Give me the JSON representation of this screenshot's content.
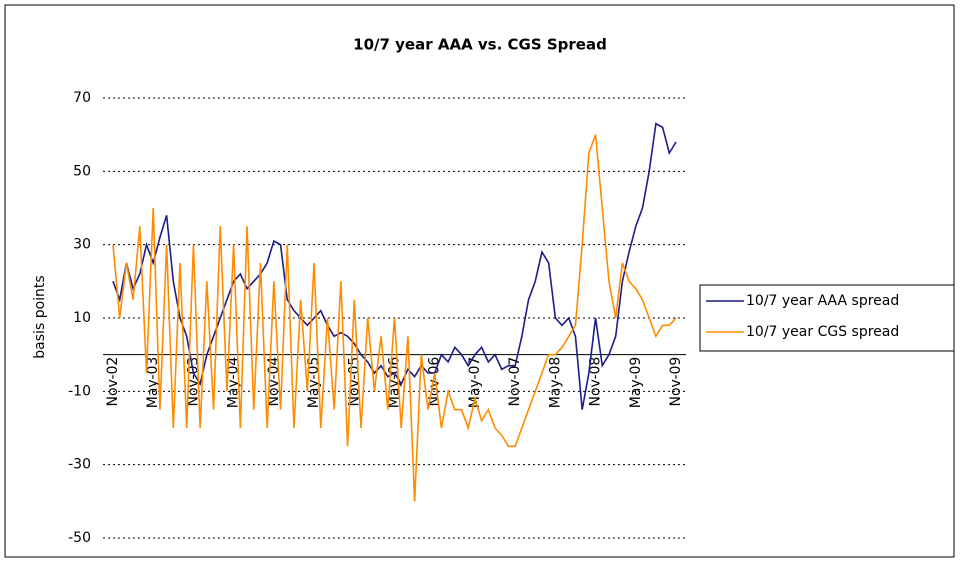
{
  "chart_data": {
    "type": "line",
    "title": "10/7 year AAA vs. CGS Spread",
    "y_label": "basis points",
    "categories": [
      "Nov-02",
      null,
      null,
      null,
      null,
      null,
      "May-03",
      null,
      null,
      null,
      null,
      null,
      "Nov-03",
      null,
      null,
      null,
      null,
      null,
      "May-04",
      null,
      null,
      null,
      null,
      null,
      "Nov-04",
      null,
      null,
      null,
      null,
      null,
      "May-05",
      null,
      null,
      null,
      null,
      null,
      "Nov-05",
      null,
      null,
      null,
      null,
      null,
      "May-06",
      null,
      null,
      null,
      null,
      null,
      "Nov-06",
      null,
      null,
      null,
      null,
      null,
      "May-07",
      null,
      null,
      null,
      null,
      null,
      "Nov-07",
      null,
      null,
      null,
      null,
      null,
      "May-08",
      null,
      null,
      null,
      null,
      null,
      "Nov-08",
      null,
      null,
      null,
      null,
      null,
      "May-09",
      null,
      null,
      null,
      null,
      null,
      "Nov-09"
    ],
    "series": [
      {
        "name": "10/7 year AAA spread",
        "color": "#1c1c8a",
        "values": [
          20,
          15,
          25,
          18,
          22,
          30,
          25,
          32,
          38,
          20,
          10,
          5,
          -5,
          -8,
          0,
          5,
          10,
          15,
          20,
          22,
          18,
          20,
          22,
          25,
          31,
          30,
          15,
          12,
          10,
          8,
          10,
          12,
          8,
          5,
          6,
          5,
          3,
          0,
          -2,
          -5,
          -3,
          -6,
          -5,
          -8,
          -4,
          -6,
          -3,
          -5,
          -5,
          0,
          -2,
          2,
          0,
          -3,
          0,
          2,
          -2,
          0,
          -4,
          -3,
          -3,
          5,
          15,
          20,
          28,
          25,
          10,
          8,
          10,
          5,
          -15,
          -5,
          10,
          -3,
          0,
          5,
          20,
          28,
          35,
          40,
          50,
          63,
          62,
          55,
          58
        ]
      },
      {
        "name": "10/7 year CGS spread",
        "color": "#ff8c00",
        "values": [
          30,
          10,
          25,
          15,
          35,
          -5,
          40,
          -15,
          30,
          -20,
          25,
          -20,
          30,
          -20,
          20,
          -15,
          35,
          -10,
          30,
          -20,
          35,
          -15,
          25,
          -20,
          20,
          -15,
          30,
          -20,
          15,
          -10,
          25,
          -20,
          10,
          -15,
          20,
          -25,
          15,
          -20,
          10,
          -10,
          5,
          -15,
          10,
          -20,
          5,
          -40,
          0,
          -15,
          -5,
          -20,
          -10,
          -15,
          -15,
          -20,
          -12,
          -18,
          -15,
          -20,
          -22,
          -25,
          -25,
          -20,
          -15,
          -10,
          -5,
          0,
          0,
          2,
          5,
          8,
          30,
          55,
          60,
          40,
          20,
          10,
          25,
          20,
          18,
          15,
          10,
          5,
          8,
          8,
          10
        ]
      }
    ],
    "ylim": [
      -50,
      70
    ],
    "yticks": [
      -50,
      -30,
      -10,
      10,
      30,
      50,
      70
    ],
    "grid": true
  }
}
